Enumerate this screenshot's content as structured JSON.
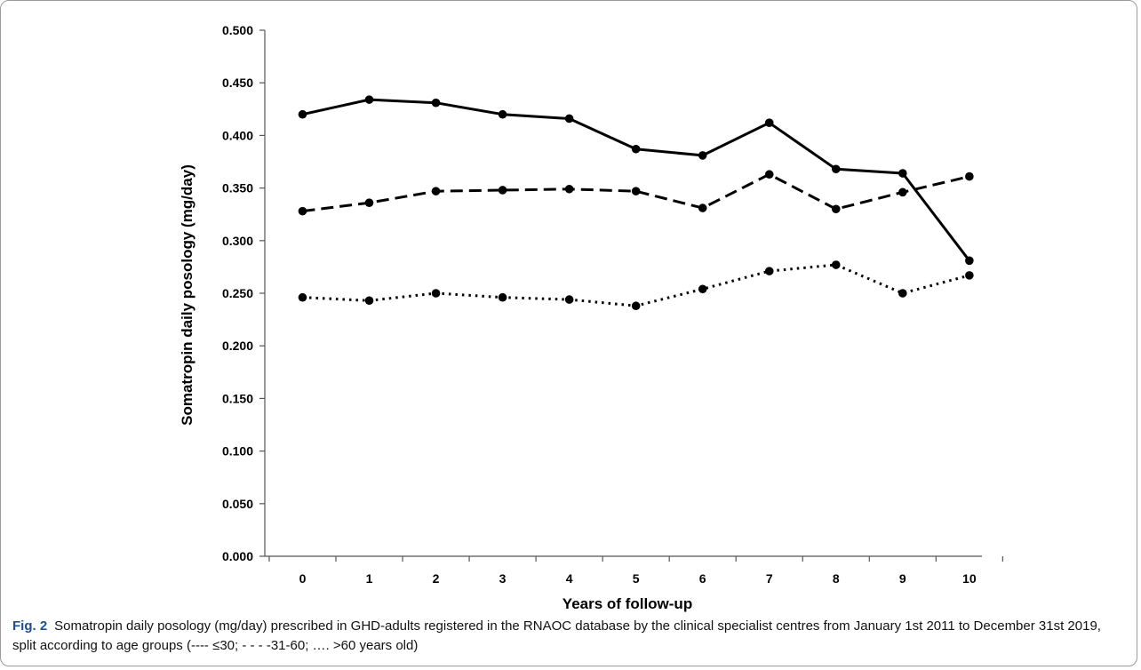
{
  "chart_data": {
    "type": "line",
    "xlabel": "Years of follow-up",
    "ylabel": "Somatropin daily posology (mg/day)",
    "x": [
      0,
      1,
      2,
      3,
      4,
      5,
      6,
      7,
      8,
      9,
      10
    ],
    "ylim": [
      0.0,
      0.5
    ],
    "yticks": [
      "0.000",
      "0.050",
      "0.100",
      "0.150",
      "0.200",
      "0.250",
      "0.300",
      "0.350",
      "0.400",
      "0.450",
      "0.500"
    ],
    "grid": false,
    "series": [
      {
        "style": "solid",
        "values": [
          0.42,
          0.434,
          0.431,
          0.42,
          0.416,
          0.387,
          0.381,
          0.412,
          0.368,
          0.364,
          0.281
        ]
      },
      {
        "style": "dashed",
        "values": [
          0.328,
          0.336,
          0.347,
          0.348,
          0.349,
          0.347,
          0.331,
          0.363,
          0.33,
          0.346,
          0.361
        ]
      },
      {
        "style": "dotted",
        "values": [
          0.246,
          0.243,
          0.25,
          0.246,
          0.244,
          0.238,
          0.254,
          0.271,
          0.277,
          0.25,
          0.267
        ]
      }
    ]
  },
  "caption": {
    "label": "Fig. 2",
    "text": "Somatropin daily posology (mg/day) prescribed in GHD-adults registered in the RNAOC database by the clinical specialist centres from January 1st 2011 to December 31st 2019, split according to age groups (---- ≤30; - - - -31-60; …. >60 years old)"
  }
}
